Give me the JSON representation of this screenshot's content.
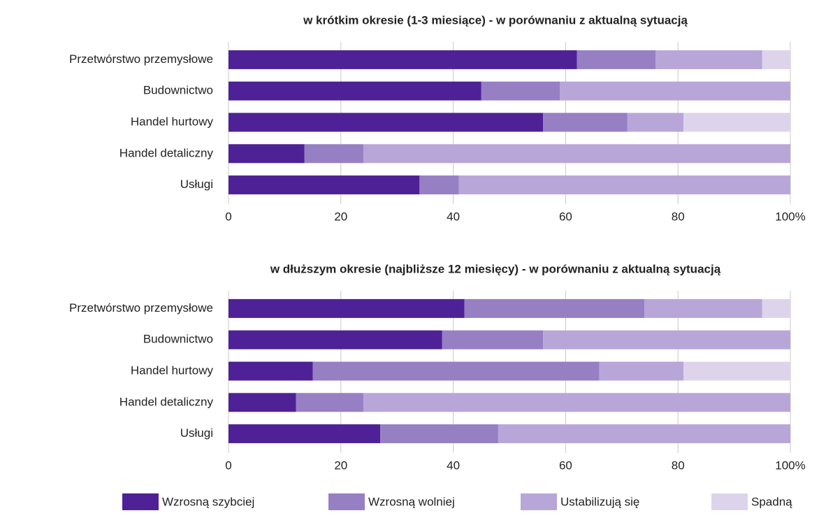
{
  "chart_data": [
    {
      "type": "stacked-bar-horizontal",
      "title": "w krótkim okresie (1-3 miesiące) - w porównaniu z aktualną sytuacją",
      "categories": [
        "Przetwórstwo przemysłowe",
        "Budownictwo",
        "Handel hurtowy",
        "Handel detaliczny",
        "Usługi"
      ],
      "series": [
        {
          "name": "Wzrosną szybciej",
          "color": "#4f2196",
          "values": [
            62,
            45,
            56,
            13.5,
            34
          ]
        },
        {
          "name": "Wzrosną wolniej",
          "color": "#977fc4",
          "values": [
            14,
            14,
            15,
            10.5,
            7
          ]
        },
        {
          "name": "Ustabilizują się",
          "color": "#b9a6d8",
          "values": [
            19,
            41,
            10,
            76,
            59
          ]
        },
        {
          "name": "Spadną",
          "color": "#ddd4ec",
          "values": [
            5,
            0,
            19,
            0,
            0
          ]
        }
      ],
      "xlim": [
        0,
        100
      ],
      "xticks": [
        0,
        20,
        40,
        60,
        80,
        {
          "value": 100,
          "label": "100%"
        }
      ],
      "grid": true
    },
    {
      "type": "stacked-bar-horizontal",
      "title": "w dłuższym okresie (najbliższe 12 miesięcy) - w porównaniu z aktualną sytuacją",
      "categories": [
        "Przetwórstwo przemysłowe",
        "Budownictwo",
        "Handel hurtowy",
        "Handel detaliczny",
        "Usługi"
      ],
      "series": [
        {
          "color": "#4f2196",
          "values": [
            42,
            38,
            15,
            12,
            27
          ]
        },
        {
          "color": "#977fc4",
          "values": [
            32,
            18,
            51,
            12,
            21
          ]
        },
        {
          "color": "#b9a6d8",
          "values": [
            21,
            44,
            15,
            76,
            52
          ]
        },
        {
          "color": "#ddd4ec",
          "values": [
            5,
            0,
            19,
            0,
            0
          ]
        }
      ],
      "xlim": [
        0,
        100
      ],
      "xticks": [
        0,
        20,
        40,
        60,
        80,
        {
          "value": 100,
          "label": "100%"
        }
      ],
      "grid": true
    }
  ]
}
